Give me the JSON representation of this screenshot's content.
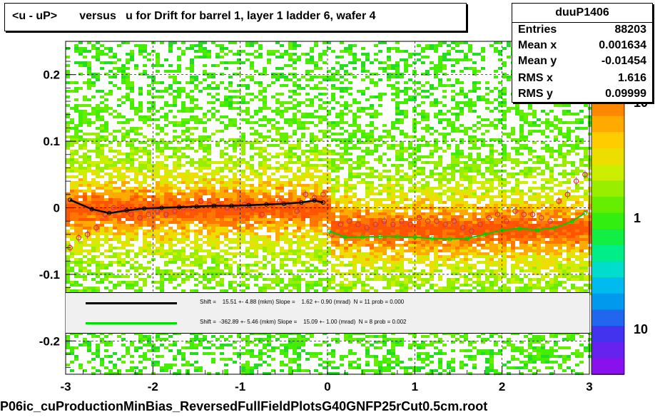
{
  "title": "<u - uP>       versus   u for Drift for barrel 1, layer 1 ladder 6, wafer 4",
  "stats": {
    "name": "duuP1406",
    "rows": [
      {
        "key": "Entries",
        "value": "88203"
      },
      {
        "key": "Mean x",
        "value": "0.001634"
      },
      {
        "key": "Mean y",
        "value": "-0.01454"
      },
      {
        "key": "RMS x",
        "value": "1.616"
      },
      {
        "key": "RMS y",
        "value": "0.09999"
      }
    ]
  },
  "legend": [
    {
      "color": "#000000",
      "text": "Shift =    15.51 +- 4.88 (mkm) Slope =    1.62 +- 0.90 (mrad)  N = 11 prob = 0.000"
    },
    {
      "color": "#00dd00",
      "text": "Shift =  -362.89 +- 5.46 (mkm) Slope =    15.09 +- 1.00 (mrad)  N = 8 prob = 0.002"
    }
  ],
  "footer": "P06ic_cuProductionMinBias_ReversedFullFieldPlotsG40GNFP25rCut0.5cm.root",
  "colorbar_labels": [
    "10",
    "1",
    "10"
  ],
  "chart_data": {
    "type": "heatmap",
    "title": "<u - uP>       versus   u for Drift for barrel 1, layer 1 ladder 6, wafer 4",
    "xlim": [
      -3,
      3
    ],
    "ylim": [
      -0.25,
      0.25
    ],
    "x_ticks": [
      "-3",
      "-2",
      "-1",
      "0",
      "1",
      "2",
      "3"
    ],
    "y_ticks": [
      "0.2",
      "0.1",
      "0",
      "-0.1",
      "-0.2"
    ],
    "x_tick_values": [
      -3,
      -2,
      -1,
      0,
      1,
      2,
      3
    ],
    "y_tick_values": [
      0.2,
      0.1,
      0,
      -0.1,
      -0.2
    ],
    "grid": true,
    "profile_points": {
      "x": [
        -2.95,
        -2.85,
        -2.75,
        -2.65,
        -2.55,
        -2.45,
        -2.35,
        -2.25,
        -2.15,
        -2.05,
        -1.95,
        -1.85,
        -1.75,
        -1.65,
        -1.55,
        -1.45,
        -1.35,
        -1.25,
        -1.15,
        -1.05,
        -0.95,
        -0.85,
        -0.75,
        -0.65,
        -0.55,
        -0.45,
        -0.35,
        -0.25,
        -0.15,
        -0.05,
        0.05,
        0.15,
        0.25,
        0.35,
        0.45,
        0.55,
        0.65,
        0.75,
        0.85,
        0.95,
        1.05,
        1.15,
        1.25,
        1.35,
        1.45,
        1.55,
        1.65,
        1.75,
        1.85,
        1.95,
        2.05,
        2.15,
        2.25,
        2.35,
        2.45,
        2.55,
        2.65,
        2.75,
        2.85,
        2.95
      ],
      "y": [
        -0.06,
        -0.045,
        -0.04,
        -0.03,
        -0.01,
        0.0,
        0.0,
        -0.01,
        -0.015,
        -0.01,
        -0.005,
        -0.01,
        -0.005,
        0.0,
        0.0,
        0.01,
        0.005,
        0.005,
        0.0,
        0.0,
        0.005,
        0.0,
        -0.01,
        0.005,
        0.01,
        0.005,
        -0.005,
        0.02,
        0.015,
        0.02,
        -0.04,
        -0.025,
        -0.02,
        -0.025,
        -0.03,
        -0.025,
        -0.02,
        -0.025,
        -0.02,
        -0.025,
        -0.015,
        -0.02,
        -0.02,
        -0.025,
        -0.02,
        -0.03,
        -0.035,
        -0.025,
        -0.015,
        -0.01,
        -0.02,
        -0.005,
        -0.01,
        -0.01,
        -0.015,
        -0.02,
        0.01,
        0.02,
        0.04,
        0.05
      ]
    },
    "series": [
      {
        "x": [
          -2.95,
          -2.7,
          -2.5,
          -2.3,
          -2.1,
          -1.9,
          -1.7,
          -1.5,
          -1.3,
          -1.1,
          -0.9,
          -0.7,
          -0.5,
          -0.3,
          -0.15,
          -0.05
        ],
        "y": [
          0.012,
          -0.002,
          -0.008,
          -0.004,
          -0.001,
          0.0,
          0.001,
          0.002,
          0.003,
          0.003,
          0.004,
          0.005,
          0.006,
          0.008,
          0.011,
          0.008
        ]
      },
      {
        "x": [
          0.02,
          0.2,
          0.4,
          0.6,
          0.8,
          1.0,
          1.2,
          1.4,
          1.6,
          1.8,
          2.0,
          2.2,
          2.4,
          2.6,
          2.8,
          2.95
        ],
        "y": [
          -0.035,
          -0.044,
          -0.044,
          -0.043,
          -0.043,
          -0.044,
          -0.046,
          -0.047,
          -0.046,
          -0.04,
          -0.033,
          -0.031,
          -0.033,
          -0.03,
          -0.02,
          -0.008
        ]
      }
    ]
  }
}
